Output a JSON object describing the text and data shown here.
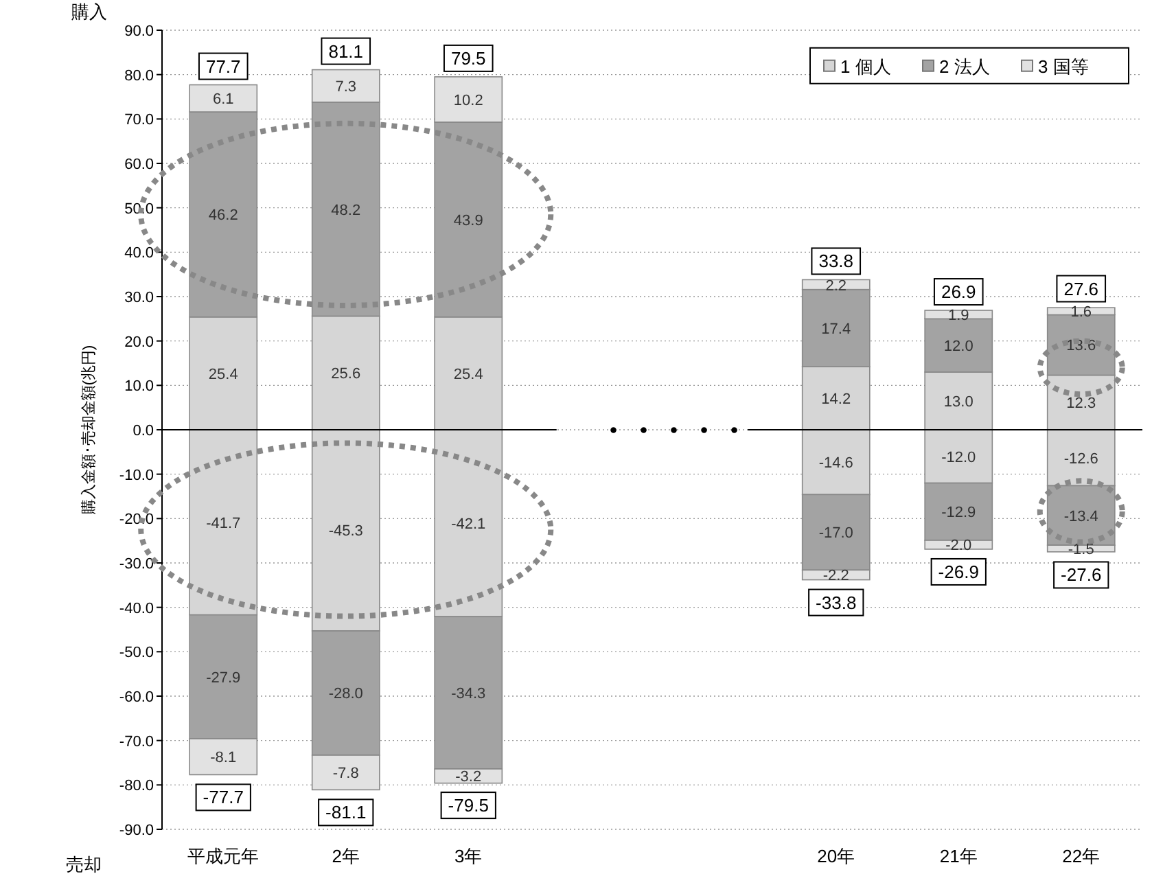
{
  "chart_data": {
    "type": "bar",
    "stacked": true,
    "ylabel": "購入金額･売却金額(兆円)",
    "categories": [
      "平成元年",
      "2年",
      "3年",
      null,
      null,
      "20年",
      "21年",
      "22年"
    ],
    "series": [
      {
        "name": "1 個人",
        "color": "#d6d6d6",
        "values": [
          25.4,
          25.6,
          25.4,
          null,
          null,
          14.2,
          13.0,
          12.3
        ],
        "value_labels": [
          "25.4",
          "25.6",
          "25.4",
          null,
          null,
          "14.2",
          "13.0",
          "12.3"
        ]
      },
      {
        "color": "#d6d6d6",
        "values": [
          -41.7,
          -45.3,
          -42.1,
          null,
          null,
          -14.6,
          -12.0,
          -12.6
        ],
        "value_labels": [
          "-41.7",
          "-45.3",
          "-42.1",
          null,
          null,
          "-14.6",
          "-12.0",
          "-12.6"
        ]
      },
      {
        "name": "2 法人",
        "color": "#a3a3a3",
        "values": [
          46.2,
          48.2,
          43.9,
          null,
          null,
          17.4,
          12.0,
          13.6
        ],
        "value_labels": [
          "46.2",
          "48.2",
          "43.9",
          null,
          null,
          "17.4",
          "12.0",
          "13.6"
        ]
      },
      {
        "color": "#a3a3a3",
        "values": [
          -27.9,
          -28.0,
          -34.3,
          null,
          null,
          -17.0,
          -12.9,
          -13.4
        ],
        "value_labels": [
          "-27.9",
          "-28.0",
          "-34.3",
          null,
          null,
          "-17.0",
          "-12.9",
          "-13.4"
        ]
      },
      {
        "name": "3 国等",
        "color": "#e2e2e2",
        "values": [
          6.1,
          7.3,
          10.2,
          null,
          null,
          2.2,
          1.9,
          1.6
        ],
        "value_labels": [
          "6.1",
          "7.3",
          "10.2",
          null,
          null,
          "2.2",
          "1.9",
          "1.6"
        ]
      },
      {
        "color": "#e2e2e2",
        "values": [
          -8.1,
          -7.8,
          -3.2,
          null,
          null,
          -2.2,
          -2.0,
          -1.5
        ],
        "value_labels": [
          "-8.1",
          "-7.8",
          "-3.2",
          null,
          null,
          "-2.2",
          "-2.0",
          "-1.5"
        ]
      }
    ],
    "annotations": [
      "購入",
      "売却",
      "・・・・・",
      {
        "text": "77.7",
        "x": "平成元年",
        "y": 77.7
      },
      {
        "text": "81.1",
        "x": "2年",
        "y": 81.1
      },
      {
        "text": "79.5",
        "x": "3年",
        "y": 79.5
      },
      {
        "text": "33.8",
        "x": "20年",
        "y": 33.8
      },
      {
        "text": "26.9",
        "x": "21年",
        "y": 26.9
      },
      {
        "text": "27.6",
        "x": "22年",
        "y": 27.6
      },
      {
        "text": "-77.7",
        "x": "平成元年",
        "y": -77.7
      },
      {
        "text": "-81.1",
        "x": "2年",
        "y": -81.1
      },
      {
        "text": "-79.5",
        "x": "3年",
        "y": -79.5
      },
      {
        "text": "-33.8",
        "x": "20年",
        "y": -33.8
      },
      {
        "text": "-26.9",
        "x": "21年",
        "y": -26.9
      },
      {
        "text": "-27.6",
        "x": "22年",
        "y": -27.6
      }
    ],
    "ylim": [
      -90,
      90
    ],
    "yticks": [
      {
        "value": 90,
        "label": "90.0"
      },
      {
        "value": 80,
        "label": "80.0"
      },
      {
        "value": 70,
        "label": "70.0"
      },
      {
        "value": 60,
        "label": "60.0"
      },
      {
        "value": 50,
        "label": "50.0"
      },
      {
        "value": 40,
        "label": "40.0"
      },
      {
        "value": 30,
        "label": "30.0"
      },
      {
        "value": 20,
        "label": "20.0"
      },
      {
        "value": 10,
        "label": "10.0"
      },
      {
        "value": 0,
        "label": "0.0"
      },
      {
        "value": -10,
        "label": "-10.0"
      },
      {
        "value": -20,
        "label": "-20.0"
      },
      {
        "value": -30,
        "label": "-30.0"
      },
      {
        "value": -40,
        "label": "-40.0"
      },
      {
        "value": -50,
        "label": "-50.0"
      },
      {
        "value": -60,
        "label": "-60.0"
      },
      {
        "value": -70,
        "label": "-70.0"
      },
      {
        "value": -80,
        "label": "-80.0"
      },
      {
        "value": -90,
        "label": "-90.0"
      }
    ],
    "grid": "y",
    "legend": "top right"
  }
}
